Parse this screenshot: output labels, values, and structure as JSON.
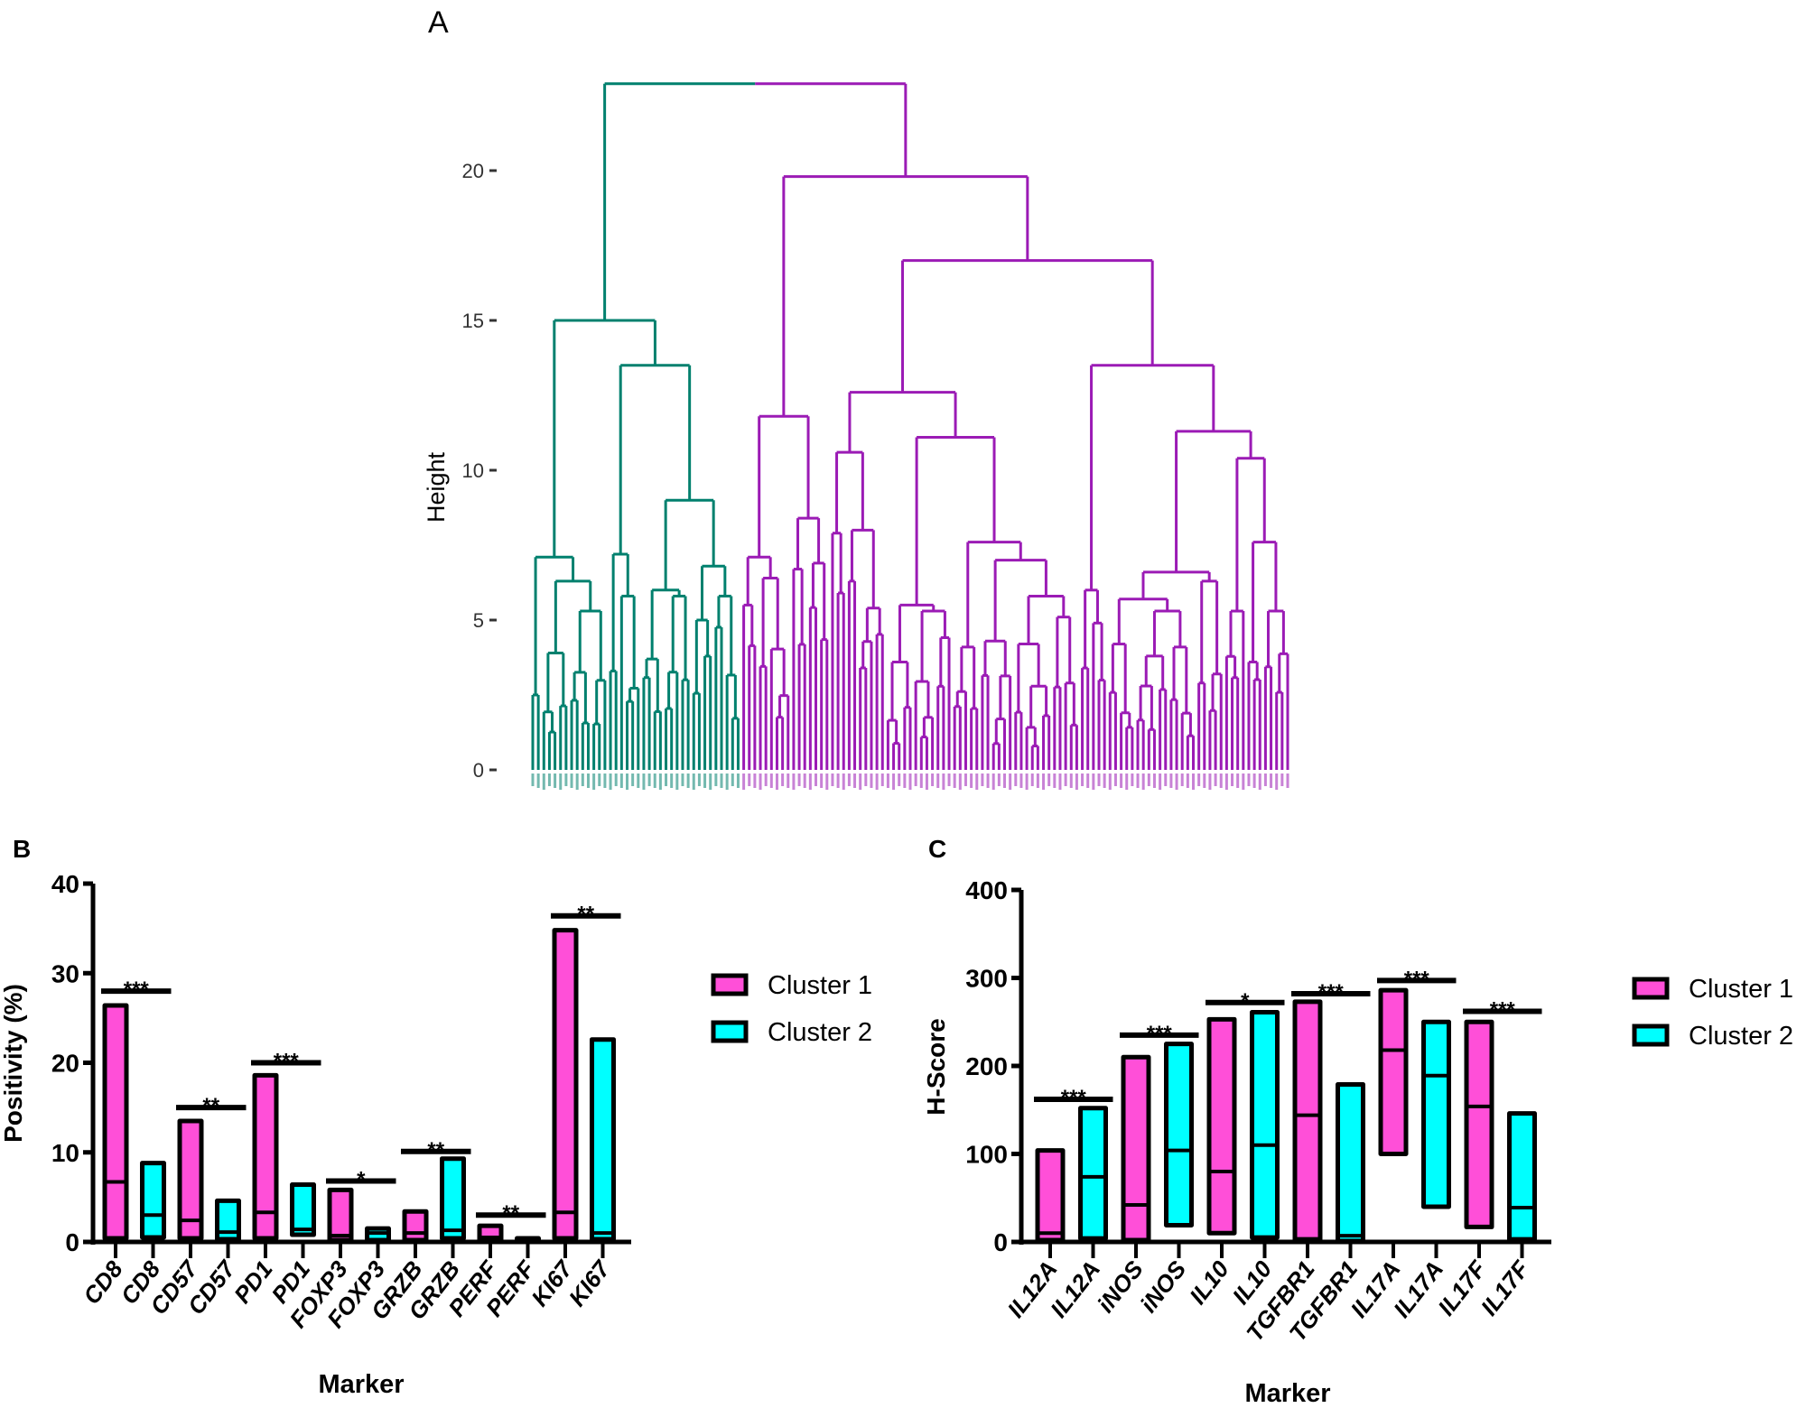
{
  "colors": {
    "cluster1_branch": "#00806e",
    "cluster2_branch": "#9b1bb5",
    "cluster1_fill": "#ff4fd8",
    "cluster2_fill": "#00ffff",
    "outline": "#000000"
  },
  "chart_data": [
    {
      "panel": "A",
      "type": "dendrogram",
      "ylabel": "Height",
      "ylim": [
        0,
        23
      ],
      "yticks": [
        0,
        5,
        10,
        15,
        20
      ],
      "grid": false,
      "tree": {
        "h": 22.9,
        "c": [
          {
            "h": 15.0,
            "color": "teal",
            "c": [
              {
                "h": 7.1,
                "c": [
                  {
                    "h": 2.5,
                    "n": 2
                  },
                  {
                    "h": 6.3,
                    "c": [
                      {
                        "h": 3.9,
                        "n": 5
                      },
                      {
                        "h": 5.3,
                        "n": 7
                      }
                    ]
                  }
                ]
              },
              {
                "h": 13.5,
                "c": [
                  {
                    "h": 7.2,
                    "c": [
                      {
                        "h": 3.3,
                        "n": 2
                      },
                      {
                        "h": 5.8,
                        "n": 4
                      }
                    ]
                  },
                  {
                    "h": 9.0,
                    "c": [
                      {
                        "h": 6.0,
                        "c": [
                          {
                            "h": 3.7,
                            "n": 4
                          },
                          {
                            "h": 5.8,
                            "n": 5
                          }
                        ]
                      },
                      {
                        "h": 6.8,
                        "c": [
                          {
                            "h": 5.0,
                            "n": 4
                          },
                          {
                            "h": 5.8,
                            "n": 5
                          }
                        ]
                      }
                    ]
                  }
                ]
              }
            ]
          },
          {
            "h": 19.8,
            "color": "purple",
            "c": [
              {
                "h": 11.8,
                "c": [
                  {
                    "h": 7.1,
                    "c": [
                      {
                        "h": 5.5,
                        "n": 3
                      },
                      {
                        "h": 6.4,
                        "n": 6
                      }
                    ]
                  },
                  {
                    "h": 8.4,
                    "c": [
                      {
                        "h": 6.7,
                        "n": 3
                      },
                      {
                        "h": 6.9,
                        "n": 4
                      }
                    ]
                  }
                ]
              },
              {
                "h": 17.0,
                "c": [
                  {
                    "h": 12.6,
                    "c": [
                      {
                        "h": 10.6,
                        "c": [
                          {
                            "h": 7.9,
                            "n": 3
                          },
                          {
                            "h": 8.0,
                            "c": [
                              {
                                "h": 6.3,
                                "n": 2
                              },
                              {
                                "h": 5.4,
                                "n": 5
                              }
                            ]
                          }
                        ]
                      },
                      {
                        "h": 11.1,
                        "c": [
                          {
                            "h": 5.5,
                            "c": [
                              {
                                "h": 3.6,
                                "n": 5
                              },
                              {
                                "h": 5.3,
                                "n": 7
                              }
                            ]
                          },
                          {
                            "h": 7.6,
                            "c": [
                              {
                                "h": 4.1,
                                "n": 5
                              },
                              {
                                "h": 7.0,
                                "c": [
                                  {
                                    "h": 4.3,
                                    "n": 6
                                  },
                                  {
                                    "h": 5.8,
                                    "c": [
                                      {
                                        "h": 4.2,
                                        "n": 7
                                      },
                                      {
                                        "h": 5.1,
                                        "n": 5
                                      }
                                    ]
                                  }
                                ]
                              }
                            ]
                          }
                        ]
                      }
                    ]
                  },
                  {
                    "h": 13.5,
                    "c": [
                      {
                        "h": 6.0,
                        "c": [
                          {
                            "h": 3.4,
                            "n": 2
                          },
                          {
                            "h": 4.9,
                            "n": 3
                          }
                        ]
                      },
                      {
                        "h": 11.3,
                        "c": [
                          {
                            "h": 6.6,
                            "c": [
                              {
                                "h": 5.7,
                                "c": [
                                  {
                                    "h": 4.2,
                                    "n": 5
                                  },
                                  {
                                    "h": 5.3,
                                    "c": [
                                      {
                                        "h": 3.8,
                                        "n": 6
                                      },
                                      {
                                        "h": 4.1,
                                        "n": 5
                                      }
                                    ]
                                  }
                                ]
                              },
                              {
                                "h": 6.3,
                                "c": [
                                  {
                                    "h": 2.9,
                                    "n": 2
                                  },
                                  {
                                    "h": 3.2,
                                    "n": 3
                                  }
                                ]
                              }
                            ]
                          },
                          {
                            "h": 10.4,
                            "c": [
                              {
                                "h": 5.3,
                                "n": 4
                              },
                              {
                                "h": 7.6,
                                "c": [
                                  {
                                    "h": 3.6,
                                    "n": 3
                                  },
                                  {
                                    "h": 5.3,
                                    "n": 5
                                  }
                                ]
                              }
                            ]
                          }
                        ]
                      }
                    ]
                  }
                ]
              }
            ]
          }
        ]
      }
    },
    {
      "panel": "B",
      "type": "bar",
      "style": "floating bars (min to max, line at median)",
      "xlabel": "Marker",
      "ylabel": "Positivity (%)",
      "ylim": [
        0,
        40
      ],
      "yticks": [
        0,
        10,
        20,
        30,
        40
      ],
      "legend": {
        "position": "right",
        "entries": [
          "Cluster 1",
          "Cluster 2"
        ]
      },
      "groups": [
        {
          "marker": "CD8",
          "sig": "***",
          "sig_y": 28,
          "cluster1": {
            "min": 0.4,
            "median": 6.7,
            "max": 26.4
          },
          "cluster2": {
            "min": 0.5,
            "median": 3.0,
            "max": 8.8
          }
        },
        {
          "marker": "CD57",
          "sig": "**",
          "sig_y": 15,
          "cluster1": {
            "min": 0.4,
            "median": 2.4,
            "max": 13.5
          },
          "cluster2": {
            "min": 0.3,
            "median": 1.1,
            "max": 4.6
          }
        },
        {
          "marker": "PD1",
          "sig": "***",
          "sig_y": 20,
          "cluster1": {
            "min": 0.4,
            "median": 3.3,
            "max": 18.6
          },
          "cluster2": {
            "min": 0.8,
            "median": 1.4,
            "max": 6.4
          }
        },
        {
          "marker": "FOXP3",
          "sig": "*",
          "sig_y": 6.8,
          "cluster1": {
            "min": 0.2,
            "median": 0.7,
            "max": 5.8
          },
          "cluster2": {
            "min": 0.2,
            "median": 1.0,
            "max": 1.5
          }
        },
        {
          "marker": "GRZB",
          "sig": "**",
          "sig_y": 10.1,
          "cluster1": {
            "min": 0.2,
            "median": 1.0,
            "max": 3.4
          },
          "cluster2": {
            "min": 0.4,
            "median": 1.3,
            "max": 9.3
          }
        },
        {
          "marker": "PERF",
          "sig": "**",
          "sig_y": 3.0,
          "cluster1": {
            "min": 0.2,
            "median": 0.5,
            "max": 1.8
          },
          "cluster2": {
            "min": 0.1,
            "median": 0.2,
            "max": 0.4
          }
        },
        {
          "marker": "KI67",
          "sig": "**",
          "sig_y": 36.4,
          "cluster1": {
            "min": 0.4,
            "median": 3.3,
            "max": 34.8
          },
          "cluster2": {
            "min": 0.3,
            "median": 1.0,
            "max": 22.6
          }
        }
      ]
    },
    {
      "panel": "C",
      "type": "bar",
      "style": "floating bars (min to max, line at median)",
      "xlabel": "Marker",
      "ylabel": "H-Score",
      "ylim": [
        0,
        400
      ],
      "yticks": [
        0,
        100,
        200,
        300,
        400
      ],
      "legend": {
        "position": "right",
        "entries": [
          "Cluster 1",
          "Cluster 2"
        ]
      },
      "groups": [
        {
          "marker": "IL12A",
          "sig": "***",
          "sig_y": 162,
          "cluster1": {
            "min": 2,
            "median": 10,
            "max": 104
          },
          "cluster2": {
            "min": 4,
            "median": 74,
            "max": 152
          }
        },
        {
          "marker": "iNOS",
          "sig": "***",
          "sig_y": 235,
          "cluster1": {
            "min": 2,
            "median": 42,
            "max": 210
          },
          "cluster2": {
            "min": 19,
            "median": 104,
            "max": 225
          }
        },
        {
          "marker": "IL10",
          "sig": "*",
          "sig_y": 272,
          "cluster1": {
            "min": 10,
            "median": 80,
            "max": 253
          },
          "cluster2": {
            "min": 5,
            "median": 110,
            "max": 261
          }
        },
        {
          "marker": "TGFBR1",
          "sig": "***",
          "sig_y": 282,
          "cluster1": {
            "min": 3,
            "median": 144,
            "max": 273
          },
          "cluster2": {
            "min": 1,
            "median": 7,
            "max": 179
          }
        },
        {
          "marker": "IL17A",
          "sig": "***",
          "sig_y": 297,
          "cluster1": {
            "min": 100,
            "median": 218,
            "max": 286
          },
          "cluster2": {
            "min": 40,
            "median": 189,
            "max": 250
          }
        },
        {
          "marker": "IL17F",
          "sig": "***",
          "sig_y": 262,
          "cluster1": {
            "min": 17,
            "median": 154,
            "max": 250
          },
          "cluster2": {
            "min": 3,
            "median": 39,
            "max": 146
          }
        }
      ]
    }
  ]
}
